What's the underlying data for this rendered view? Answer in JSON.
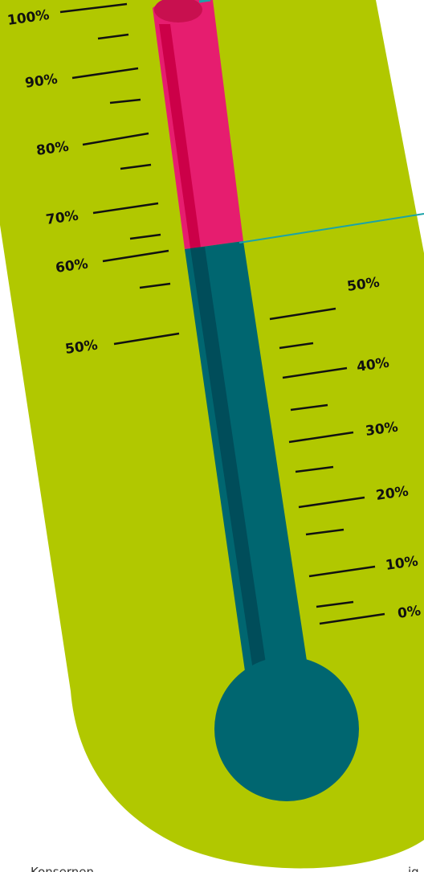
{
  "scale_left": {
    "labels": [
      "100%",
      "90%",
      "80%",
      "70%",
      "60%",
      "50%"
    ]
  },
  "scale_right": {
    "labels": [
      "50%",
      "40%",
      "30%",
      "20%",
      "10%",
      "0%"
    ]
  },
  "footer": {
    "left_text": "Konsernen",
    "right_text": "ig"
  }
}
